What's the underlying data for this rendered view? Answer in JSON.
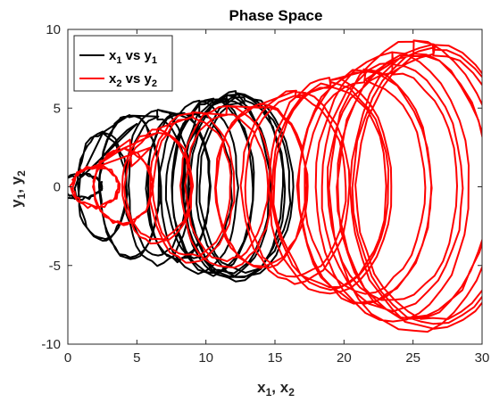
{
  "chart_data": {
    "type": "line",
    "title": "Phase Space",
    "xlabel": "x1, x2",
    "ylabel": "y1, y2",
    "xlim": [
      0,
      30
    ],
    "ylim": [
      -10,
      10
    ],
    "xticks": [
      0,
      5,
      10,
      15,
      20,
      25,
      30
    ],
    "yticks": [
      -10,
      -5,
      0,
      5,
      10
    ],
    "grid": false,
    "legend_position": "top-left",
    "series": [
      {
        "name": "x1 vs y1",
        "color": "#000000",
        "approx_center_x": [
          1.0,
          2.5,
          4.5,
          6.5,
          8.0,
          9.5,
          10.5,
          11.5,
          12.2,
          12.8
        ],
        "approx_amplitude_y": [
          0.8,
          3.5,
          4.2,
          4.6,
          4.9,
          5.0,
          5.2,
          5.3,
          5.5,
          5.6
        ]
      },
      {
        "name": "x2 vs y2",
        "color": "#ff0000",
        "approx_center_x": [
          2.0,
          4.0,
          6.5,
          9.0,
          11.5,
          14.0,
          16.5,
          19.0,
          21.5,
          23.5,
          25.0,
          26.5
        ],
        "approx_amplitude_y": [
          1.2,
          2.2,
          3.4,
          4.4,
          5.0,
          5.6,
          6.2,
          6.8,
          7.4,
          8.0,
          8.6,
          9.0
        ]
      }
    ]
  },
  "legend": {
    "entries": [
      {
        "label": "x1 vs y1",
        "color": "#000000"
      },
      {
        "label": "x2 vs y2",
        "color": "#ff0000"
      }
    ]
  }
}
